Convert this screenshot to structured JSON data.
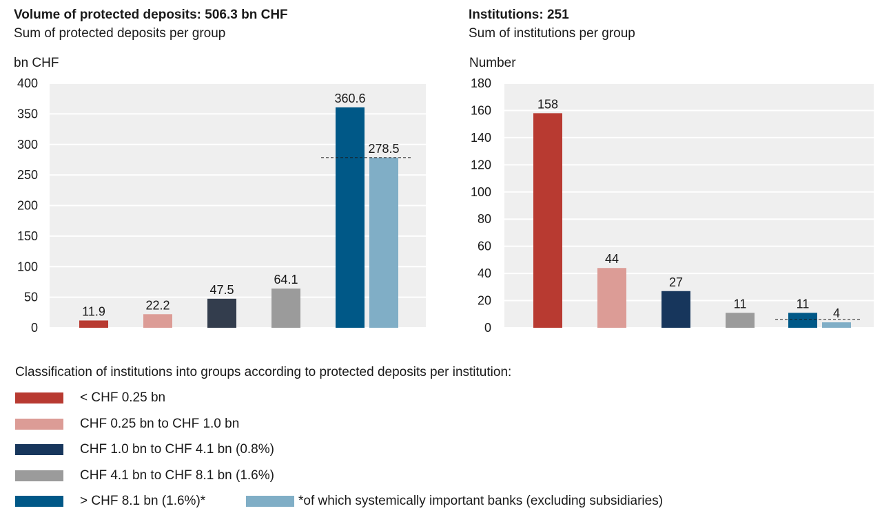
{
  "chart_data": [
    {
      "type": "bar",
      "title": "Volume of protected deposits: 506.3 bn CHF",
      "subtitle": "Sum of protected deposits per group",
      "ylabel": "bn CHF",
      "ylim": [
        0,
        400
      ],
      "yticks": [
        "0",
        "50",
        "100",
        "150",
        "200",
        "250",
        "300",
        "350",
        "400"
      ],
      "grid": true,
      "bars": [
        {
          "group": "< CHF 0.25 bn",
          "value": 11.9,
          "label": "11.9",
          "color": "#b83a31"
        },
        {
          "group": "CHF 0.25 bn to CHF 1.0 bn",
          "value": 22.2,
          "label": "22.2",
          "color": "#dc9c96"
        },
        {
          "group": "CHF 1.0 bn to CHF 4.1 bn (0.8%)",
          "value": 47.5,
          "label": "47.5",
          "color": "#333d4d"
        },
        {
          "group": "CHF 4.1 bn to CHF 8.1 bn (1.6%)",
          "value": 64.1,
          "label": "64.1",
          "color": "#9b9b9b"
        },
        {
          "group": "> CHF 8.1 bn (1.6%)*",
          "value": 360.6,
          "label": "360.6",
          "color": "#005887"
        },
        {
          "group": "*of which systemically important banks (excluding subsidiaries)",
          "value": 278.5,
          "label": "278.5",
          "color": "#80aec6"
        }
      ],
      "reference_line": 278.5
    },
    {
      "type": "bar",
      "title": "Institutions: 251",
      "subtitle": "Sum of institutions per group",
      "ylabel": "Number",
      "ylim": [
        0,
        180
      ],
      "yticks": [
        "0",
        "20",
        "40",
        "60",
        "80",
        "100",
        "120",
        "140",
        "160",
        "180"
      ],
      "grid": true,
      "bars": [
        {
          "group": "< CHF 0.25 bn",
          "value": 158,
          "label": "158",
          "color": "#b83a31"
        },
        {
          "group": "CHF 0.25 bn to CHF 1.0 bn",
          "value": 44,
          "label": "44",
          "color": "#dc9c96"
        },
        {
          "group": "CHF 1.0 bn to CHF 4.1 bn (0.8%)",
          "value": 27,
          "label": "27",
          "color": "#17365c"
        },
        {
          "group": "CHF 4.1 bn to CHF 8.1 bn (1.6%)",
          "value": 11,
          "label": "11",
          "color": "#9b9b9b"
        },
        {
          "group": "> CHF 8.1 bn (1.6%)*",
          "value": 11,
          "label": "11",
          "color": "#005887"
        },
        {
          "group": "*of which systemically important banks (excluding subsidiaries)",
          "value": 4,
          "label": "4",
          "color": "#80aec6"
        }
      ],
      "reference_line": 6
    }
  ],
  "legend": {
    "title": "Classification of institutions into groups according to protected deposits per institution:",
    "items": [
      {
        "label": "< CHF 0.25 bn",
        "color": "#b83a31"
      },
      {
        "label": "CHF 0.25 bn to CHF 1.0 bn",
        "color": "#dc9c96"
      },
      {
        "label": "CHF 1.0 bn to CHF 4.1 bn (0.8%)",
        "color": "#17365c"
      },
      {
        "label": "CHF 4.1 bn to CHF 8.1 bn (1.6%)",
        "color": "#9b9b9b"
      },
      {
        "label": "> CHF 8.1 bn (1.6%)*",
        "color": "#005887"
      },
      {
        "label": "*of which systemically important banks (excluding subsidiaries)",
        "color": "#80aec6"
      }
    ]
  }
}
